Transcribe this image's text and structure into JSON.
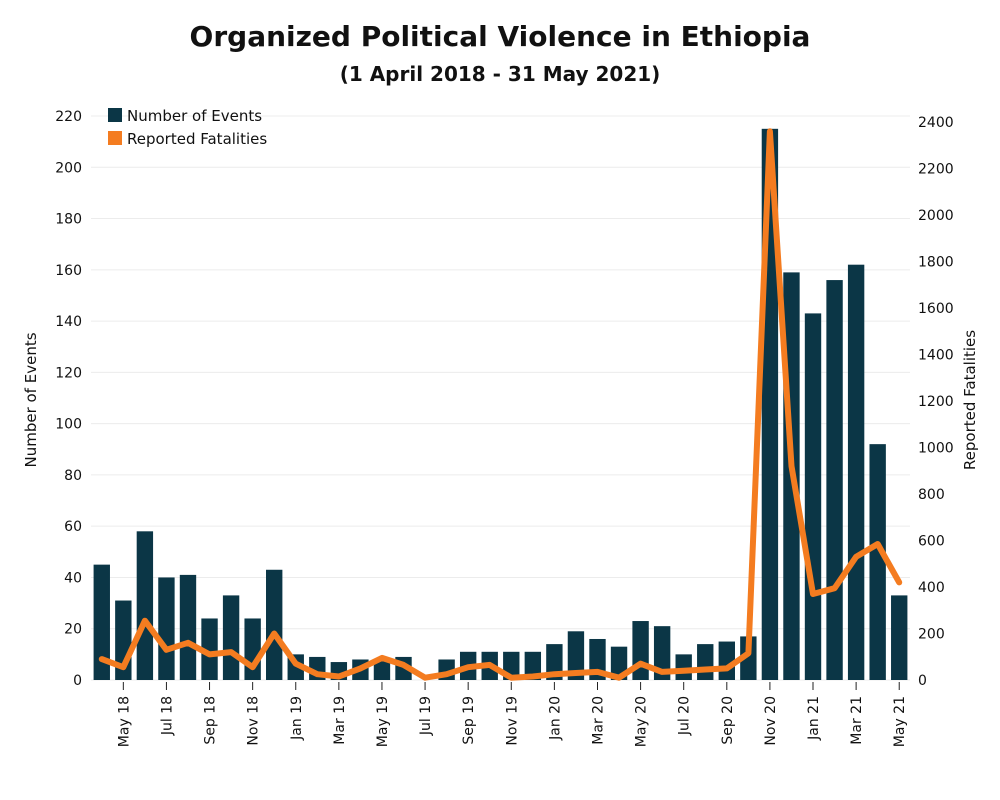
{
  "chart_data": {
    "type": "bar",
    "title": "Organized Political Violence in Ethiopia",
    "subtitle": "(1 April 2018 - 31 May 2021)",
    "ylabel": "Number of Events",
    "y2label": "Reported Fatalities",
    "ylim": [
      0,
      220
    ],
    "y2lim": [
      0,
      2400
    ],
    "yticks": [
      0,
      20,
      40,
      60,
      80,
      100,
      120,
      140,
      160,
      180,
      200,
      220
    ],
    "y2ticks": [
      0,
      200,
      400,
      600,
      800,
      1000,
      1200,
      1400,
      1600,
      1800,
      2000,
      2200,
      2400
    ],
    "grid": true,
    "legend_position": "top-left",
    "categories": [
      "Apr 18",
      "May 18",
      "Jun 18",
      "Jul 18",
      "Aug 18",
      "Sep 18",
      "Oct 18",
      "Nov 18",
      "Dec 18",
      "Jan 19",
      "Feb 19",
      "Mar 19",
      "Apr 19",
      "May 19",
      "Jun 19",
      "Jul 19",
      "Aug 19",
      "Sep 19",
      "Oct 19",
      "Nov 19",
      "Dec 19",
      "Jan 20",
      "Feb 20",
      "Mar 20",
      "Apr 20",
      "May 20",
      "Jun 20",
      "Jul 20",
      "Aug 20",
      "Sep 20",
      "Oct 20",
      "Nov 20",
      "Dec 20",
      "Jan 21",
      "Feb 21",
      "Mar 21",
      "Apr 21",
      "May 21"
    ],
    "tick_labels": [
      "May 18",
      "Jul 18",
      "Sep 18",
      "Nov 18",
      "Jan 19",
      "Mar 19",
      "May 19",
      "Jul 19",
      "Sep 19",
      "Nov 19",
      "Jan 20",
      "Mar 20",
      "May 20",
      "Jul 20",
      "Sep 20",
      "Nov 20",
      "Jan 21",
      "Mar 21",
      "May 21"
    ],
    "series": [
      {
        "name": "Number of Events",
        "type": "bar",
        "axis": "left",
        "color": "#0b3646",
        "values": [
          45,
          31,
          58,
          40,
          41,
          24,
          33,
          24,
          43,
          10,
          9,
          7,
          8,
          8,
          9,
          0,
          8,
          11,
          11,
          11,
          11,
          14,
          19,
          16,
          13,
          23,
          21,
          10,
          14,
          15,
          17,
          215,
          159,
          143,
          156,
          162,
          92,
          33
        ]
      },
      {
        "name": "Reported Fatalities",
        "type": "line",
        "axis": "right",
        "color": "#f47c20",
        "values": [
          90,
          55,
          255,
          130,
          160,
          110,
          120,
          55,
          200,
          70,
          25,
          15,
          50,
          95,
          65,
          10,
          25,
          55,
          65,
          10,
          15,
          25,
          30,
          35,
          10,
          70,
          35,
          40,
          45,
          50,
          115,
          2360,
          920,
          370,
          395,
          530,
          585,
          420
        ]
      }
    ]
  }
}
